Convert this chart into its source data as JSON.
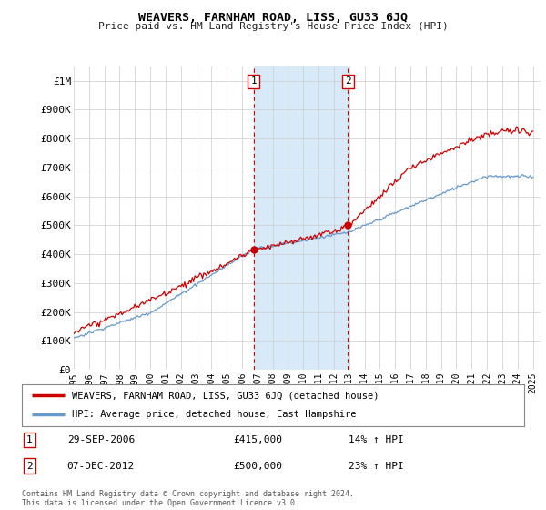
{
  "title": "WEAVERS, FARNHAM ROAD, LISS, GU33 6JQ",
  "subtitle": "Price paid vs. HM Land Registry's House Price Index (HPI)",
  "ylabel_ticks": [
    "£0",
    "£100K",
    "£200K",
    "£300K",
    "£400K",
    "£500K",
    "£600K",
    "£700K",
    "£800K",
    "£900K",
    "£1M"
  ],
  "ytick_values": [
    0,
    100000,
    200000,
    300000,
    400000,
    500000,
    600000,
    700000,
    800000,
    900000,
    1000000
  ],
  "ylim": [
    0,
    1050000
  ],
  "xlim_start": 1995.0,
  "xlim_end": 2025.5,
  "shaded_region": [
    2006.75,
    2012.92
  ],
  "shaded_color": "#d8eaf8",
  "marker1_x": 2006.75,
  "marker1_y": 415000,
  "marker2_x": 2012.92,
  "marker2_y": 500000,
  "marker1_date": "29-SEP-2006",
  "marker1_price": "£415,000",
  "marker1_hpi": "14% ↑ HPI",
  "marker2_date": "07-DEC-2012",
  "marker2_price": "£500,000",
  "marker2_hpi": "23% ↑ HPI",
  "vline_color": "#dd0000",
  "legend_line1": "WEAVERS, FARNHAM ROAD, LISS, GU33 6JQ (detached house)",
  "legend_line2": "HPI: Average price, detached house, East Hampshire",
  "line1_color": "#cc0000",
  "line2_color": "#6699cc",
  "footer": "Contains HM Land Registry data © Crown copyright and database right 2024.\nThis data is licensed under the Open Government Licence v3.0.",
  "bg_color": "#ffffff",
  "grid_color": "#cccccc",
  "xtick_years": [
    1995,
    1996,
    1997,
    1998,
    1999,
    2000,
    2001,
    2002,
    2003,
    2004,
    2005,
    2006,
    2007,
    2008,
    2009,
    2010,
    2011,
    2012,
    2013,
    2014,
    2015,
    2016,
    2017,
    2018,
    2019,
    2020,
    2021,
    2022,
    2023,
    2024,
    2025
  ]
}
